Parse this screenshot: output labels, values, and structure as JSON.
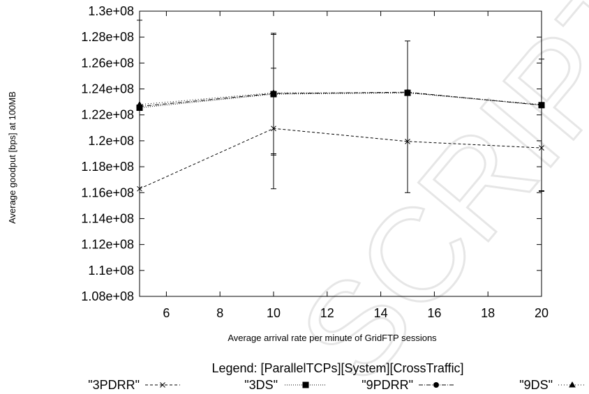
{
  "watermark": "SCRIPT",
  "chart_data": {
    "type": "line",
    "title": "",
    "xlabel": "Average arrival rate per minute of GridFTP sessions",
    "ylabel": "Average goodput [bps] at 100MB",
    "xlim": [
      5,
      20
    ],
    "ylim": [
      108000000,
      130000000
    ],
    "xticks": [
      6,
      8,
      10,
      12,
      14,
      16,
      18,
      20
    ],
    "xtick_labels": [
      "6",
      "8",
      "10",
      "12",
      "14",
      "16",
      "18",
      "20"
    ],
    "yticks": [
      108000000,
      110000000,
      112000000,
      114000000,
      116000000,
      118000000,
      120000000,
      122000000,
      124000000,
      126000000,
      128000000,
      130000000
    ],
    "ytick_labels": [
      "1.08e+08",
      "1.1e+08",
      "1.12e+08",
      "1.14e+08",
      "1.16e+08",
      "1.18e+08",
      "1.2e+08",
      "1.22e+08",
      "1.24e+08",
      "1.26e+08",
      "1.28e+08",
      "1.3e+08"
    ],
    "grid": false,
    "legend_title": "Legend: [ParallelTCPs][System][CrossTraffic]",
    "legend_position": "bottom",
    "series": [
      {
        "name": "\"3PDRR\"",
        "marker": "x",
        "dash": "4,3",
        "x": [
          5,
          10,
          15,
          20
        ],
        "y": [
          116300000,
          120950000,
          119950000,
          119450000
        ],
        "err_low": [
          null,
          116300000,
          116000000,
          116150000
        ],
        "err_high": [
          null,
          125600000,
          127700000,
          null
        ]
      },
      {
        "name": "\"3DS\"",
        "marker": "square",
        "dash": "1,2",
        "x": [
          5,
          10,
          15,
          20
        ],
        "y": [
          122550000,
          123600000,
          123700000,
          122750000
        ],
        "err_low": [
          null,
          119000000,
          null,
          null
        ],
        "err_high": [
          null,
          128300000,
          null,
          126300000
        ]
      },
      {
        "name": "\"9PDRR\"",
        "marker": "circle",
        "dash": "6,2,1,2",
        "x": [
          5,
          10,
          15,
          20
        ],
        "y": [
          122650000,
          123650000,
          123750000,
          122750000
        ],
        "err_low": [
          null,
          null,
          null,
          null
        ],
        "err_high": [
          null,
          null,
          null,
          null
        ]
      },
      {
        "name": "\"9DS\"",
        "marker": "triangle",
        "dash": "1,3",
        "x": [
          5,
          10,
          15,
          20
        ],
        "y": [
          122800000,
          123700000,
          123700000,
          122800000
        ],
        "err_low": [
          null,
          118900000,
          null,
          116100000
        ],
        "err_high": [
          129300000,
          128200000,
          null,
          null
        ]
      }
    ]
  }
}
